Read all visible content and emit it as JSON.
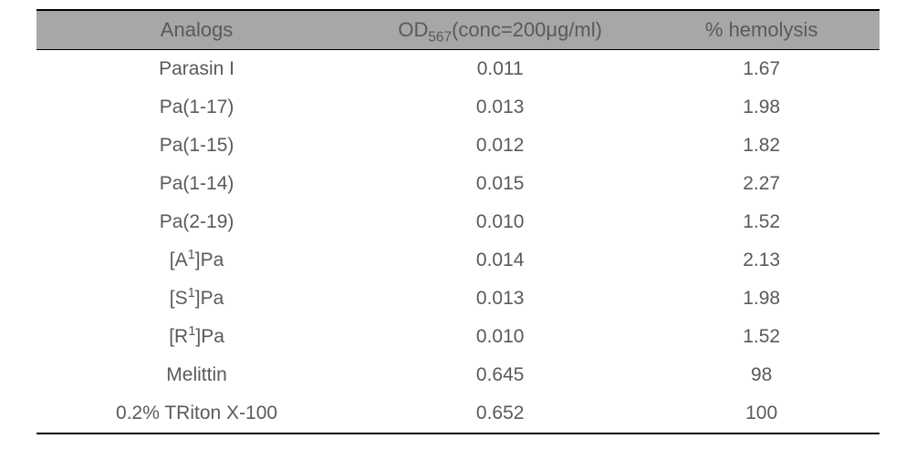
{
  "table": {
    "header_bg": "#a7a7a7",
    "text_color": "#5a5a5a",
    "font_size_header": 22,
    "font_size_cell": 21,
    "columns": [
      {
        "label_html": "Analogs"
      },
      {
        "label_html": "OD<sub>567</sub>(conc=200&mu;g/ml)"
      },
      {
        "label_html": "% hemolysis"
      }
    ],
    "rows": [
      {
        "analog_html": "Parasin I",
        "od": "0.011",
        "hem": "1.67"
      },
      {
        "analog_html": "Pa(1-17)",
        "od": "0.013",
        "hem": "1.98"
      },
      {
        "analog_html": "Pa(1-15)",
        "od": "0.012",
        "hem": "1.82"
      },
      {
        "analog_html": "Pa(1-14)",
        "od": "0.015",
        "hem": "2.27"
      },
      {
        "analog_html": "Pa(2-19)",
        "od": "0.010",
        "hem": "1.52"
      },
      {
        "analog_html": "[A<sup>1</sup>]Pa",
        "od": "0.014",
        "hem": "2.13"
      },
      {
        "analog_html": "[S<sup>1</sup>]Pa",
        "od": "0.013",
        "hem": "1.98"
      },
      {
        "analog_html": "[R<sup>1</sup>]Pa",
        "od": "0.010",
        "hem": "1.52"
      },
      {
        "analog_html": "Melittin",
        "od": "0.645",
        "hem": "98"
      },
      {
        "analog_html": "0.2% TRiton X-100",
        "od": "0.652",
        "hem": "100"
      }
    ]
  }
}
